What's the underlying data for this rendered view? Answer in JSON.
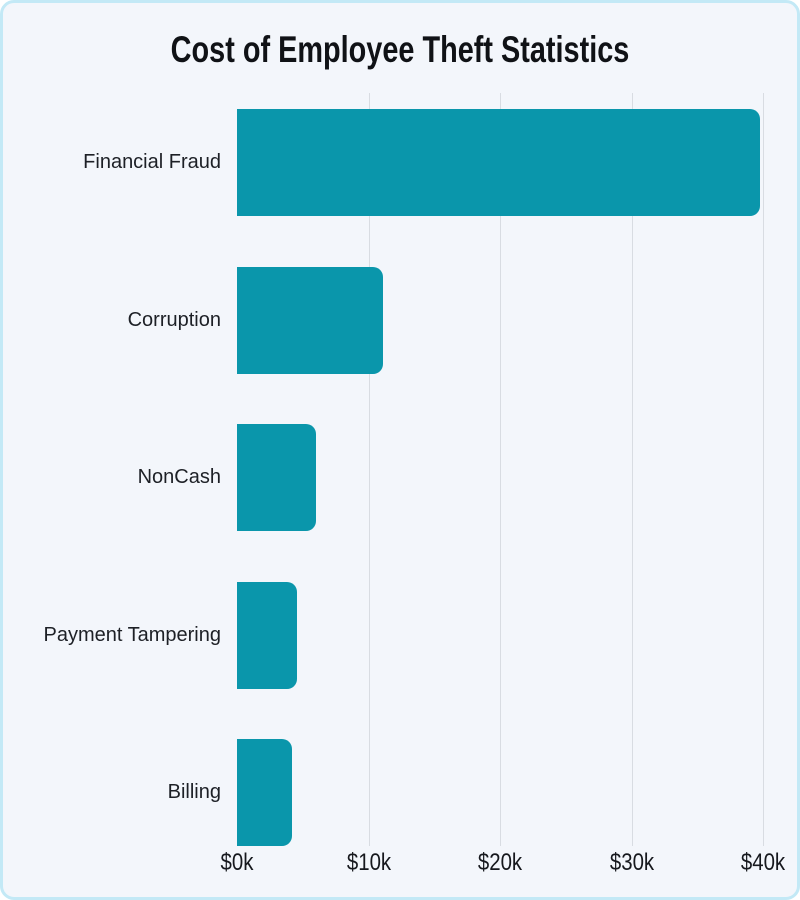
{
  "title": "Cost of Employee Theft Statistics",
  "chart_data": {
    "type": "bar",
    "orientation": "horizontal",
    "title": "Cost of Employee Theft Statistics",
    "categories": [
      "Financial Fraud",
      "Corruption",
      "NonCash",
      "Payment Tampering",
      "Billing"
    ],
    "values": [
      39800,
      11100,
      6000,
      4600,
      4200
    ],
    "xlabel": "",
    "ylabel": "",
    "xlim": [
      0,
      40000
    ],
    "x_ticks": [
      {
        "value": 0,
        "label": "$0k"
      },
      {
        "value": 10000,
        "label": "$10k"
      },
      {
        "value": 20000,
        "label": "$20k"
      },
      {
        "value": 30000,
        "label": "$30k"
      },
      {
        "value": 40000,
        "label": "$40k"
      }
    ],
    "grid": true,
    "legend": false
  },
  "colors": {
    "bar": "#0a96ab",
    "card_background": "#f3f6fb",
    "card_border": "#c3e9f6",
    "gridline": "#d8dce2",
    "label_text": "#1d2026"
  }
}
